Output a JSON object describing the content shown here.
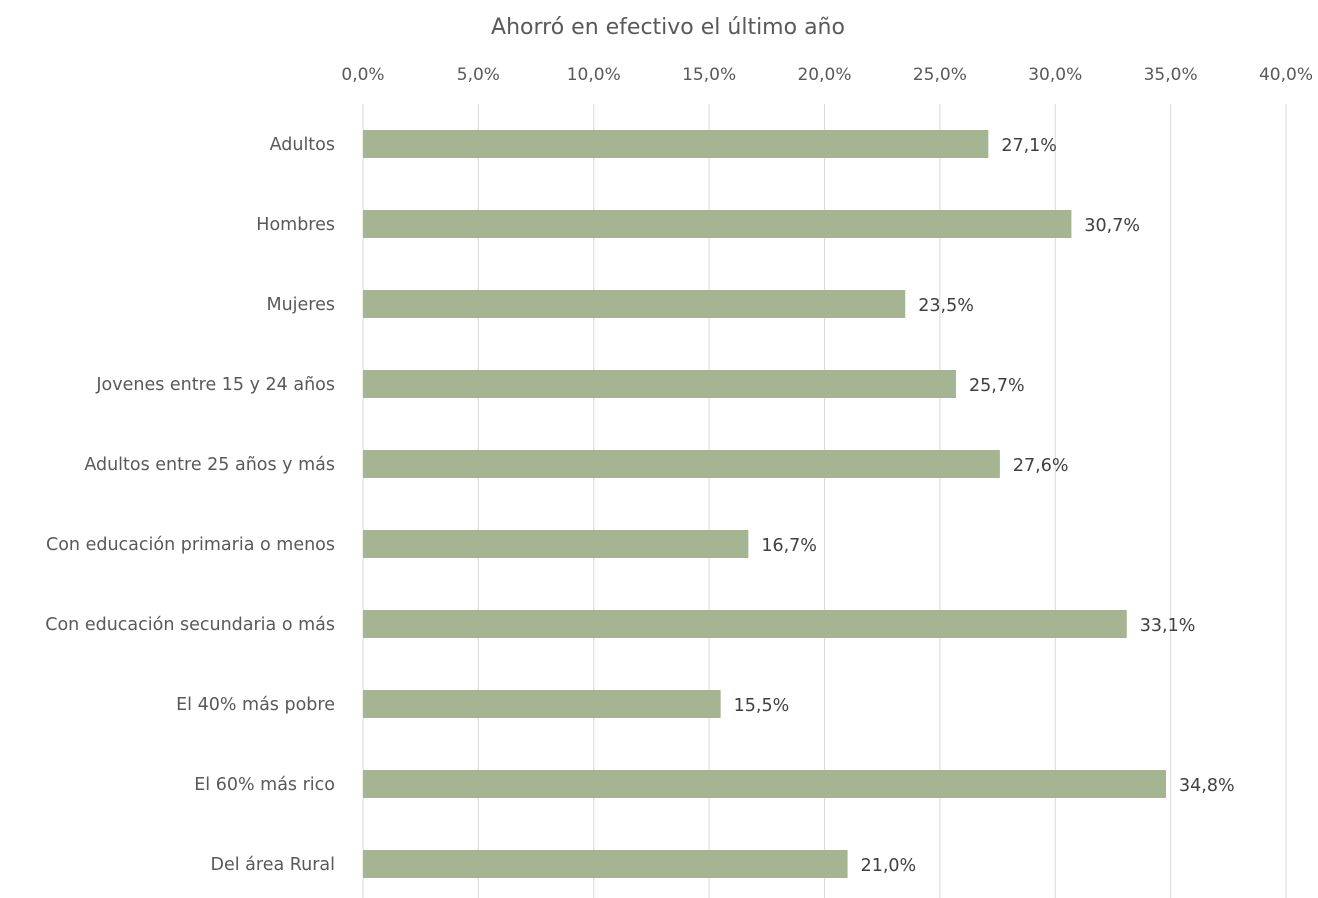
{
  "chart_data": {
    "type": "bar",
    "orientation": "horizontal",
    "title": "Ahorró en efectivo el último año",
    "xlim": [
      0,
      40
    ],
    "x_tick_labels": [
      "0,0%",
      "5,0%",
      "10,0%",
      "15,0%",
      "20,0%",
      "25,0%",
      "30,0%",
      "35,0%",
      "40,0%"
    ],
    "categories": [
      "Adultos",
      "Hombres",
      "Mujeres",
      "Jovenes entre 15 y 24 años",
      "Adultos entre 25 años y más",
      "Con educación primaria o menos",
      "Con educación secundaria o más",
      "El 40% más pobre",
      "El 60% más rico",
      "Del área Rural"
    ],
    "values": [
      27.1,
      30.7,
      23.5,
      25.7,
      27.6,
      16.7,
      33.1,
      15.5,
      34.8,
      21.0
    ],
    "data_labels": [
      "27,1%",
      "30,7%",
      "23,5%",
      "25,7%",
      "27,6%",
      "16,7%",
      "33,1%",
      "15,5%",
      "34,8%",
      "21,0%"
    ],
    "grid": true,
    "axis_position": "top",
    "bar_color": "#a5b592",
    "legend": "none"
  }
}
